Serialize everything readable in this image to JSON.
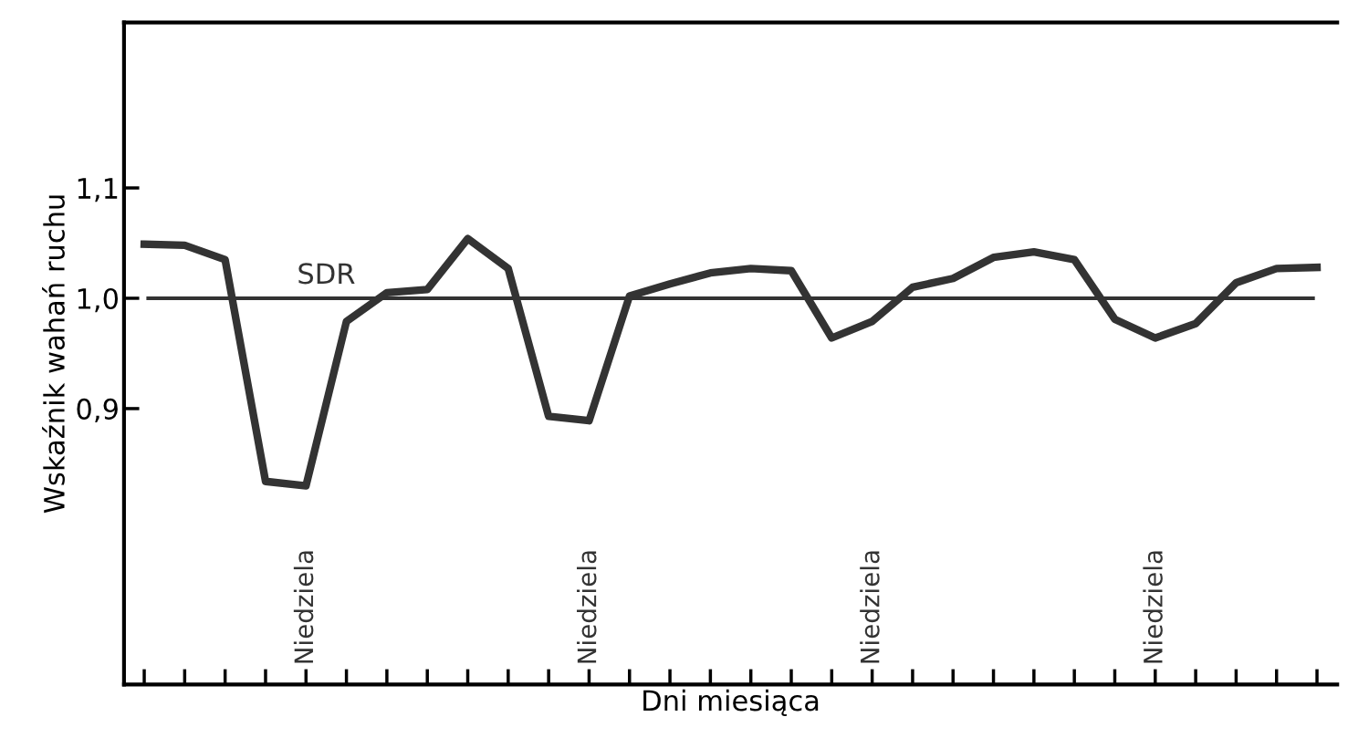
{
  "chart_data": {
    "type": "line",
    "xlabel": "Dni miesiąca",
    "ylabel": "Wskaźnik wahań ruchu",
    "categories": [
      null,
      null,
      null,
      null,
      null,
      null,
      null,
      null,
      null,
      null,
      null,
      null,
      null,
      null,
      null,
      null,
      null,
      null,
      null,
      null,
      null,
      null,
      null,
      null,
      null,
      null,
      null,
      null,
      null,
      null
    ],
    "series": [
      {
        "color": "#333333",
        "values": [
          1.049,
          1.048,
          1.035,
          0.834,
          0.83,
          0.979,
          1.005,
          1.008,
          1.054,
          1.027,
          0.893,
          0.889,
          1.002,
          1.013,
          1.023,
          1.027,
          1.025,
          0.964,
          0.979,
          1.01,
          1.018,
          1.037,
          1.042,
          1.035,
          0.981,
          0.964,
          0.977,
          1.014,
          1.027,
          1.028
        ]
      }
    ],
    "ylim": [
      0.65,
      1.25
    ],
    "yticks": [
      {
        "value": 0.9,
        "label": "0,9"
      },
      {
        "value": 1.0,
        "label": "1,0"
      },
      {
        "value": 1.1,
        "label": "1,1"
      }
    ],
    "tick_labels": "y",
    "ref_lines": [
      {
        "axis": "y",
        "value": 1.0,
        "label": "SDR",
        "color": "#333333"
      }
    ],
    "annotations": [
      "Niedziela",
      "Niedziela",
      "Niedziela",
      "Niedziela"
    ],
    "grid": false,
    "legend": false,
    "marker": "none",
    "line_style": "solid"
  }
}
